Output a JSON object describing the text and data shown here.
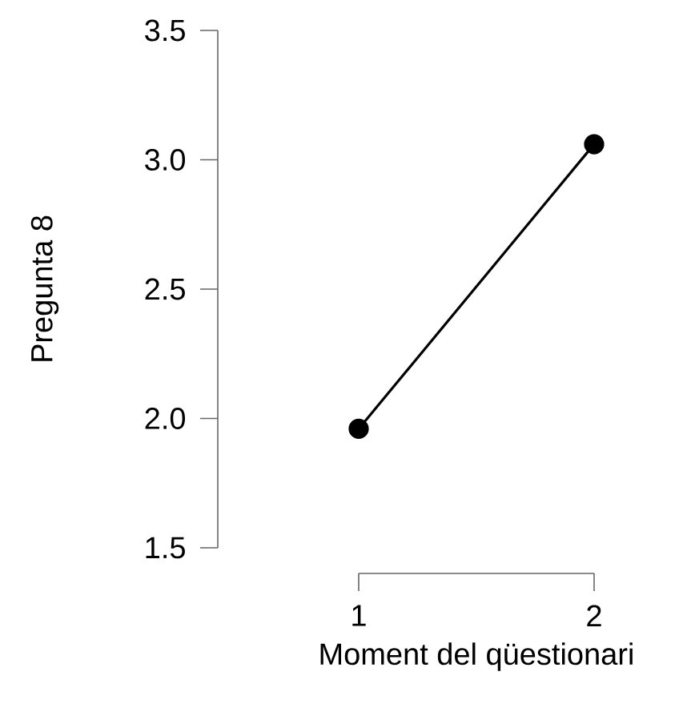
{
  "chart_data": {
    "type": "line",
    "xlabel": "Moment del qüestionari",
    "ylabel": "Pregunta 8",
    "x": [
      1,
      2
    ],
    "values": [
      1.96,
      3.06
    ],
    "color": "#000000",
    "marker": "circle",
    "xlim": [
      1,
      2
    ],
    "xticks": [
      1,
      2
    ],
    "ylim": [
      1.5,
      3.5
    ],
    "yticks": [
      1.5,
      {
        "value": 2,
        "label": "2.0"
      },
      2.5,
      {
        "value": 3,
        "label": "3.0"
      },
      3.5
    ]
  }
}
